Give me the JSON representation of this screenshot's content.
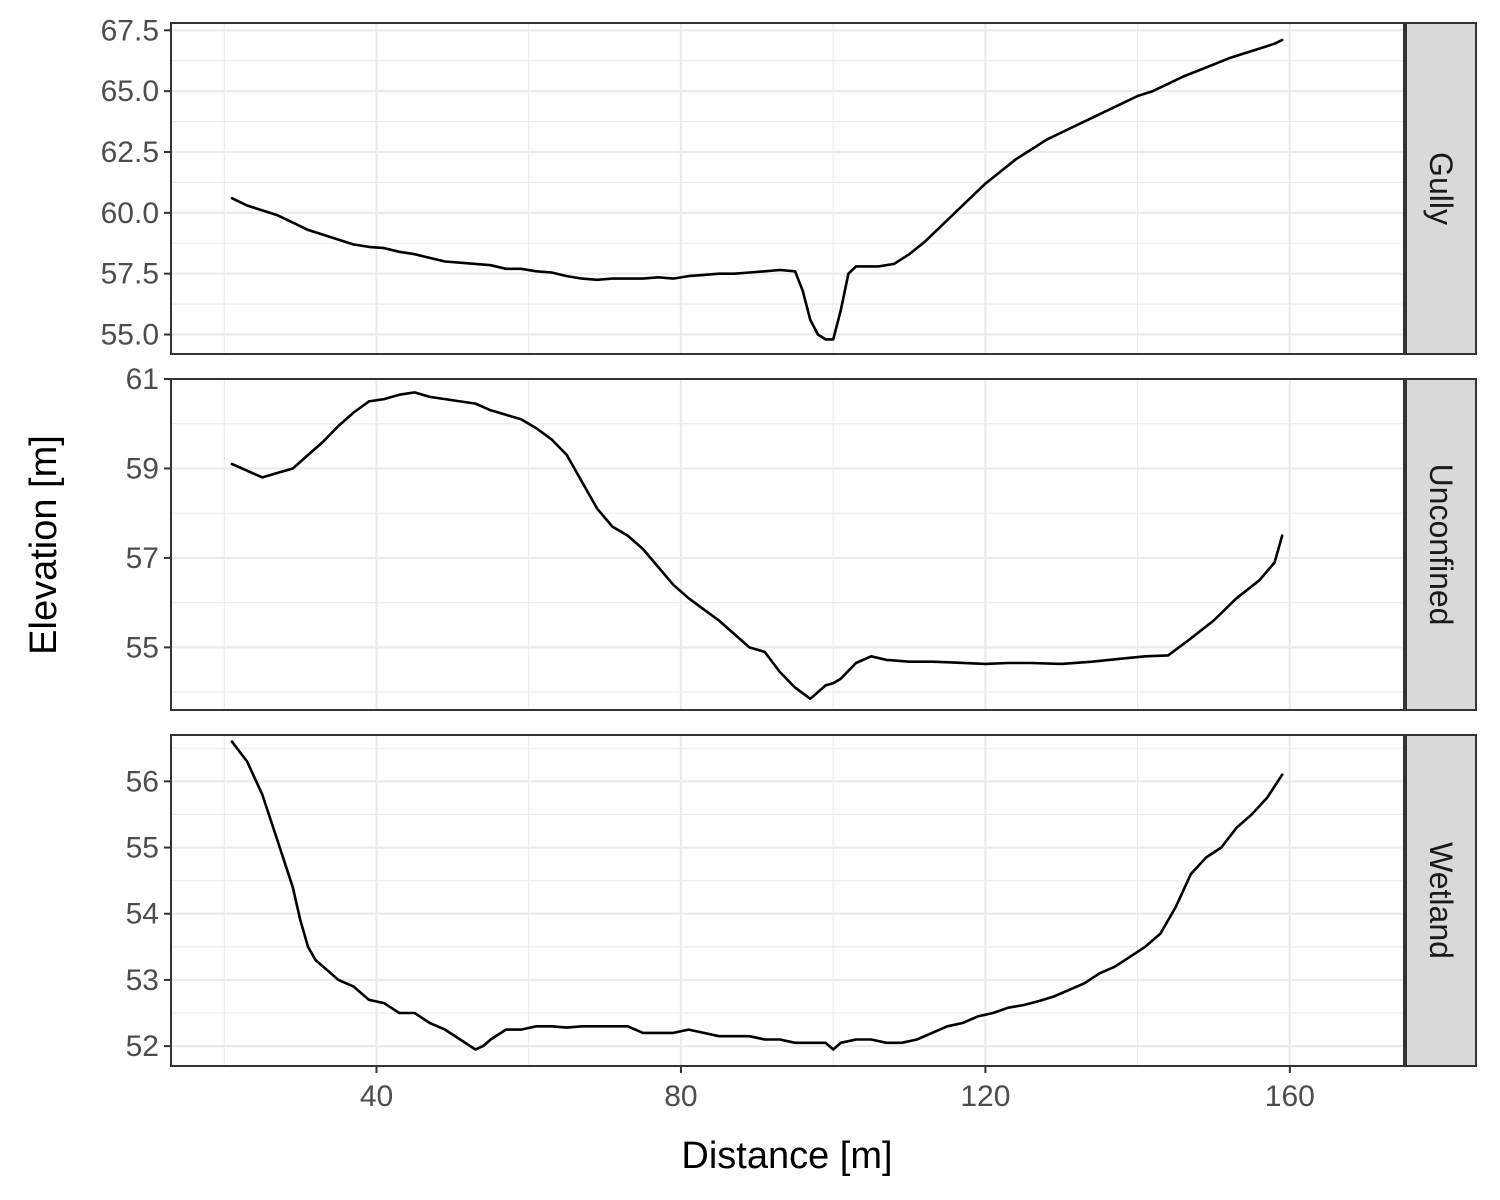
{
  "chart_data": {
    "type": "line",
    "layout": "faceted-vertical",
    "xlabel": "Distance [m]",
    "ylabel": "Elevation [m]",
    "xlim": [
      13,
      175
    ],
    "x_ticks": [
      "40",
      "80",
      "120",
      "160"
    ],
    "x_tick_values": [
      40,
      80,
      120,
      160
    ],
    "grid": true,
    "line_color": "#000000",
    "strip_color": "#d9d9d9",
    "panels": [
      {
        "strip": "Gully",
        "ylim": [
          54.2,
          67.8
        ],
        "y_ticks": [
          "55.0",
          "57.5",
          "60.0",
          "62.5",
          "65.0",
          "67.5"
        ],
        "y_tick_values": [
          55.0,
          57.5,
          60.0,
          62.5,
          65.0,
          67.5
        ],
        "x": [
          21,
          23,
          25,
          27,
          29,
          31,
          33,
          35,
          37,
          39,
          41,
          43,
          45,
          47,
          49,
          51,
          53,
          55,
          57,
          59,
          61,
          63,
          65,
          67,
          69,
          71,
          73,
          75,
          77,
          79,
          81,
          83,
          85,
          87,
          89,
          91,
          93,
          95,
          96,
          97,
          98,
          99,
          100,
          101,
          102,
          103,
          104,
          106,
          108,
          110,
          112,
          114,
          116,
          118,
          120,
          122,
          124,
          126,
          128,
          130,
          132,
          134,
          136,
          138,
          140,
          142,
          144,
          146,
          148,
          150,
          152,
          154,
          156,
          158,
          159
        ],
        "y": [
          60.6,
          60.3,
          60.1,
          59.9,
          59.6,
          59.3,
          59.1,
          58.9,
          58.7,
          58.6,
          58.55,
          58.4,
          58.3,
          58.15,
          58.0,
          57.95,
          57.9,
          57.85,
          57.7,
          57.7,
          57.6,
          57.55,
          57.4,
          57.3,
          57.25,
          57.3,
          57.3,
          57.3,
          57.35,
          57.3,
          57.4,
          57.45,
          57.5,
          57.5,
          57.55,
          57.6,
          57.65,
          57.6,
          56.8,
          55.6,
          55.0,
          54.8,
          54.8,
          56.0,
          57.5,
          57.8,
          57.8,
          57.8,
          57.9,
          58.3,
          58.8,
          59.4,
          60.0,
          60.6,
          61.2,
          61.7,
          62.2,
          62.6,
          63.0,
          63.3,
          63.6,
          63.9,
          64.2,
          64.5,
          64.8,
          65.0,
          65.3,
          65.6,
          65.85,
          66.1,
          66.35,
          66.55,
          66.75,
          66.95,
          67.1
        ]
      },
      {
        "strip": "Unconfined",
        "ylim": [
          53.6,
          61.0
        ],
        "y_ticks": [
          "55",
          "57",
          "59",
          "61"
        ],
        "y_tick_values": [
          55,
          57,
          59,
          61
        ],
        "x": [
          21,
          23,
          25,
          27,
          29,
          31,
          33,
          35,
          37,
          39,
          41,
          43,
          45,
          47,
          49,
          51,
          53,
          55,
          57,
          59,
          61,
          63,
          65,
          67,
          69,
          71,
          73,
          75,
          77,
          79,
          81,
          83,
          85,
          87,
          89,
          91,
          93,
          95,
          97,
          99,
          100,
          101,
          103,
          105,
          107,
          110,
          113,
          116,
          120,
          123,
          126,
          130,
          134,
          138,
          141,
          144,
          147,
          150,
          153,
          156,
          158,
          159
        ],
        "y": [
          59.1,
          58.95,
          58.8,
          58.9,
          59.0,
          59.3,
          59.6,
          59.95,
          60.25,
          60.5,
          60.55,
          60.65,
          60.7,
          60.6,
          60.55,
          60.5,
          60.45,
          60.3,
          60.2,
          60.1,
          59.9,
          59.65,
          59.3,
          58.7,
          58.1,
          57.7,
          57.5,
          57.2,
          56.8,
          56.4,
          56.1,
          55.85,
          55.6,
          55.3,
          55.0,
          54.9,
          54.45,
          54.1,
          53.85,
          54.15,
          54.2,
          54.3,
          54.65,
          54.8,
          54.72,
          54.68,
          54.68,
          54.66,
          54.63,
          54.65,
          54.65,
          54.63,
          54.68,
          54.75,
          54.8,
          54.82,
          55.2,
          55.6,
          56.1,
          56.5,
          56.9,
          57.5
        ]
      },
      {
        "strip": "Wetland",
        "ylim": [
          51.7,
          56.7
        ],
        "y_ticks": [
          "52",
          "53",
          "54",
          "55",
          "56"
        ],
        "y_tick_values": [
          52,
          53,
          54,
          55,
          56
        ],
        "x": [
          21,
          23,
          25,
          27,
          29,
          30,
          31,
          32,
          33,
          35,
          37,
          39,
          41,
          43,
          45,
          47,
          49,
          51,
          53,
          54,
          55,
          57,
          59,
          61,
          63,
          65,
          67,
          69,
          71,
          73,
          75,
          77,
          79,
          81,
          83,
          85,
          87,
          89,
          91,
          93,
          95,
          97,
          99,
          100,
          101,
          103,
          105,
          107,
          109,
          111,
          113,
          115,
          117,
          119,
          121,
          123,
          125,
          127,
          129,
          131,
          133,
          135,
          137,
          139,
          141,
          143,
          145,
          147,
          149,
          151,
          153,
          155,
          157,
          159
        ],
        "y": [
          56.6,
          56.3,
          55.8,
          55.1,
          54.4,
          53.9,
          53.5,
          53.3,
          53.2,
          53.0,
          52.9,
          52.7,
          52.65,
          52.5,
          52.5,
          52.35,
          52.25,
          52.1,
          51.95,
          52.0,
          52.1,
          52.25,
          52.25,
          52.3,
          52.3,
          52.28,
          52.3,
          52.3,
          52.3,
          52.3,
          52.2,
          52.2,
          52.2,
          52.25,
          52.2,
          52.15,
          52.15,
          52.15,
          52.1,
          52.1,
          52.05,
          52.05,
          52.05,
          51.95,
          52.05,
          52.1,
          52.1,
          52.05,
          52.05,
          52.1,
          52.2,
          52.3,
          52.35,
          52.45,
          52.5,
          52.58,
          52.62,
          52.68,
          52.75,
          52.85,
          52.95,
          53.1,
          53.2,
          53.35,
          53.5,
          53.7,
          54.1,
          54.6,
          54.85,
          55.0,
          55.3,
          55.5,
          55.75,
          56.1
        ]
      }
    ]
  }
}
